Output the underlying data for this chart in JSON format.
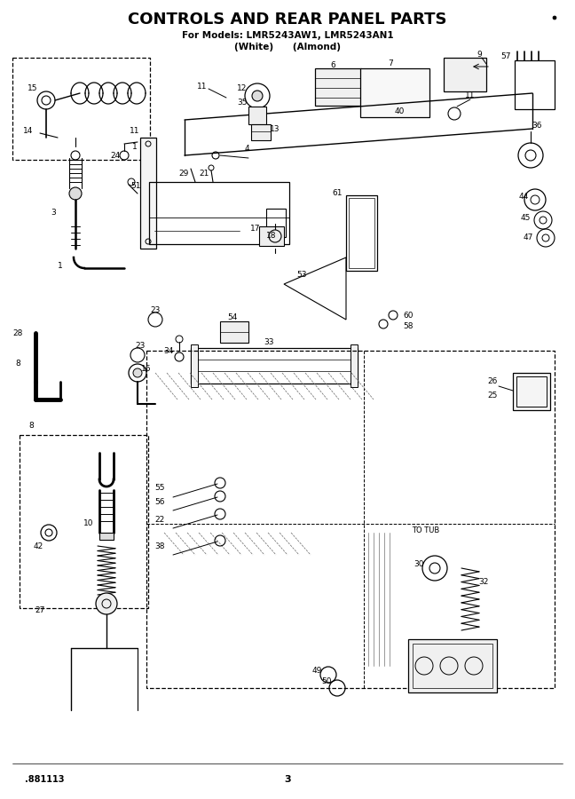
{
  "title": "CONTROLS AND REAR PANEL PARTS",
  "subtitle1": "For Models: LMR5243AW1, LMR5243AN1",
  "subtitle2": "(White)      (Almond)",
  "bottom_left_text": ".881113",
  "bottom_center_text": "3",
  "bg_color": "#ffffff",
  "title_fontsize": 13,
  "subtitle_fontsize": 7.5,
  "label_fontsize": 6.5
}
